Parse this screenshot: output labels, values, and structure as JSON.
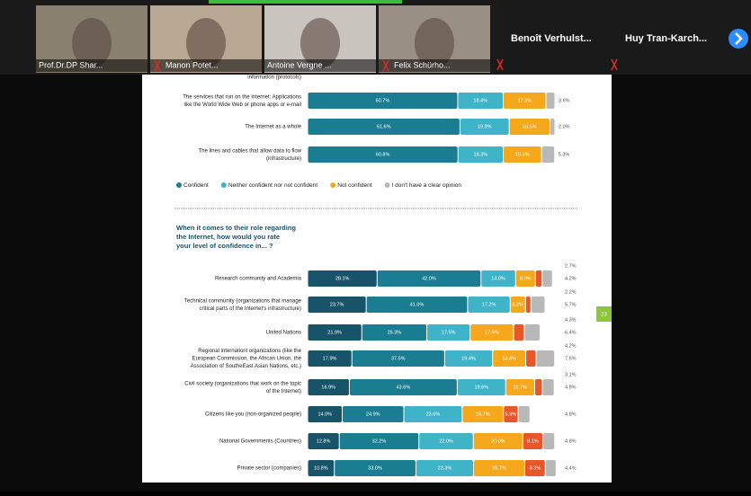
{
  "participants": [
    {
      "name": "Prof.Dr.DP Shar...",
      "muted": false,
      "video": "#8a8070"
    },
    {
      "name": "Manon Potet...",
      "muted": true,
      "video": "#b9a894"
    },
    {
      "name": "Antoine Vergne ...",
      "muted": false,
      "video": "#c9c4bd"
    },
    {
      "name": "Felix Schürho...",
      "muted": true,
      "video": "#9a8f84"
    },
    {
      "name": "Benoît Verhulst...",
      "muted": true,
      "video": null
    },
    {
      "name": "Huy Tran-Karch...",
      "muted": true,
      "video": null
    }
  ],
  "document": {
    "page_number": "23",
    "chart1": {
      "type": "bar",
      "cut_label": "information (protocols)",
      "categories": [
        [
          "The services that run on the Internet: Applications",
          "like the World Wide Web or phone apps or e-mail"
        ],
        [
          "The Internet as a whole"
        ],
        [
          "The lines and cables that allow data to flow",
          "(infrastructure)"
        ]
      ],
      "series": [
        {
          "name": "Confident",
          "color": "#1a7d92",
          "values": [
            60.7,
            61.6,
            60.8
          ],
          "value_labels": [
            "60.7%",
            "61.6%",
            "60.8%"
          ]
        },
        {
          "name": "Neither confident nor not confident",
          "color": "#3fb3c8",
          "values": [
            18.4,
            19.9,
            18.3
          ],
          "value_labels": [
            "18.4%",
            "19.9%",
            "18.3%"
          ]
        },
        {
          "name": "Not confident",
          "color": "#f5a81c",
          "values": [
            17.3,
            16.5,
            15.5
          ],
          "value_labels": [
            "17.3%",
            "16.5%",
            "15.5%"
          ]
        },
        {
          "name": "I don't have a clear opinion",
          "color": "#b8b8b8",
          "values": [
            3.6,
            2.0,
            5.3
          ],
          "value_labels": [
            "3.6%",
            "2.0%",
            "5.3%"
          ]
        }
      ]
    },
    "chart2": {
      "type": "bar",
      "title": [
        "When it comes to their role regarding",
        "the Internet, how would you rate",
        "your level of confidence in... ?"
      ],
      "categories": [
        [
          "Research community and Academia"
        ],
        [
          "Technical community (organizations that manage",
          "critical parts of the Internet's infrastructure)"
        ],
        [
          "United Nations"
        ],
        [
          "Regional internationl organizations (like the",
          "European Commission, the African Union, the",
          "Association of SoutheEast Asian Nations, etc.)"
        ],
        [
          "Civil society (organizations that work on the topic",
          "of the Internet)"
        ],
        [
          "Citizens like you (non-organized people)"
        ],
        [
          "National Governments (Countries)"
        ],
        [
          "Private sector (companies)"
        ]
      ],
      "series": [
        {
          "color": "#17546a",
          "values": [
            28.1,
            23.7,
            21.9,
            17.9,
            16.9,
            14.0,
            12.8,
            10.8
          ],
          "value_labels": [
            "28.1%",
            "23.7%",
            "21.9%",
            "17.9%",
            "16.9%",
            "14.0%",
            "12.8%",
            "10.8%"
          ]
        },
        {
          "color": "#1a7d92",
          "values": [
            42.0,
            41.0,
            26.3,
            37.5,
            43.6,
            24.9,
            32.2,
            33.0
          ],
          "value_labels": [
            "42.0%",
            "41.0%",
            "26.3%",
            "37.5%",
            "43.6%",
            "24.9%",
            "32.2%",
            "33.0%"
          ]
        },
        {
          "color": "#3fb3c8",
          "values": [
            14.0,
            17.2,
            17.5,
            19.4,
            19.6,
            23.6,
            22.0,
            23.3
          ],
          "value_labels": [
            "14.0%",
            "17.2%",
            "17.5%",
            "19.4%",
            "19.6%",
            "23.6%",
            "22.0%",
            "23.3%"
          ]
        },
        {
          "color": "#f5a81c",
          "values": [
            8.0,
            6.2,
            17.6,
            13.4,
            11.7,
            16.7,
            20.0,
            20.7
          ],
          "value_labels": [
            "8.0%",
            "6.2%",
            "17.6%",
            "13.4%",
            "11.7%",
            "16.7%",
            "20.0%",
            "20.7%"
          ]
        },
        {
          "color": "#e8572a",
          "values": [
            2.7,
            2.2,
            4.3,
            4.2,
            3.1,
            5.9,
            8.1,
            8.3
          ],
          "value_labels": [
            "2.7%",
            "2.2%",
            "4.3%",
            "4.2%",
            "3.1%",
            "5.9%",
            "8.1%",
            "8.3%"
          ]
        },
        {
          "color": "#b8b8b8",
          "values": [
            4.2,
            5.7,
            6.4,
            7.5,
            4.8,
            4.8,
            4.8,
            4.4
          ],
          "value_labels": [
            "4.2%",
            "5.7%",
            "6.4%",
            "7.5%",
            "4.8%",
            "4.8%",
            "4.8%",
            "4.4%"
          ]
        }
      ]
    }
  }
}
